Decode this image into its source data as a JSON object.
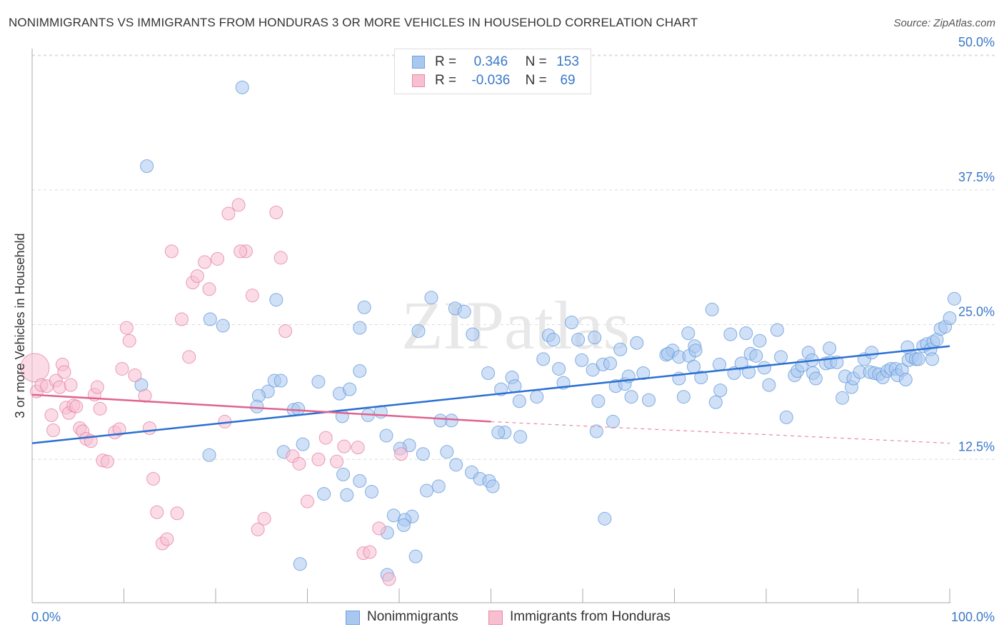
{
  "title": "NONIMMIGRANTS VS IMMIGRANTS FROM HONDURAS 3 OR MORE VEHICLES IN HOUSEHOLD CORRELATION CHART",
  "source": "Source: ZipAtlas.com",
  "watermark": "ZIPatlas",
  "legend": {
    "rows": [
      {
        "r_label": "R =",
        "r_value": "0.346",
        "n_label": "N =",
        "n_value": "153",
        "color": "#a9c8f0",
        "border": "#6f9fde"
      },
      {
        "r_label": "R =",
        "r_value": "-0.036",
        "n_label": "N =",
        "n_value": "69",
        "color": "#f8bfd1",
        "border": "#e88aa7"
      }
    ]
  },
  "bottom_legend": [
    {
      "label": "Nonimmigrants",
      "color": "#a9c8f0",
      "border": "#6f9fde"
    },
    {
      "label": "Immigrants from Honduras",
      "color": "#f8bfd1",
      "border": "#e88aa7"
    }
  ],
  "chart_data": {
    "type": "scatter",
    "ylabel": "3 or more Vehicles in Household",
    "xlabel": "",
    "x_tick_labels": [
      "0.0%",
      "100.0%"
    ],
    "y_tick_labels": [
      "12.5%",
      "25.0%",
      "37.5%",
      "50.0%"
    ],
    "y_ticks": [
      12.5,
      25.0,
      37.5,
      50.0
    ],
    "xlim": [
      0,
      100
    ],
    "ylim": [
      0,
      51
    ],
    "grid": true,
    "series": [
      {
        "name": "Nonimmigrants",
        "color": "#5f95d8",
        "fill": "#a9c8f0",
        "trend": {
          "x0": 0,
          "y0": 14.0,
          "x1": 100,
          "y1": 23.0
        },
        "points": [
          [
            22.9,
            47
          ],
          [
            12.5,
            39.7
          ],
          [
            26.6,
            27.3
          ],
          [
            11.9,
            19.4
          ],
          [
            19.4,
            25.5
          ],
          [
            20.8,
            24.9
          ],
          [
            25.7,
            18.8
          ],
          [
            26.4,
            19.8
          ],
          [
            27.1,
            19.8
          ],
          [
            24.7,
            18.4
          ],
          [
            31.2,
            19.7
          ],
          [
            28.5,
            17.1
          ],
          [
            33.5,
            18.6
          ],
          [
            34.6,
            19.0
          ],
          [
            35.7,
            20.7
          ],
          [
            36.2,
            26.6
          ],
          [
            35.7,
            24.7
          ],
          [
            42.1,
            24.4
          ],
          [
            43.5,
            27.5
          ],
          [
            46.1,
            26.5
          ],
          [
            47.1,
            26.2
          ],
          [
            48.0,
            24.1
          ],
          [
            49.7,
            20.5
          ],
          [
            51.1,
            19.0
          ],
          [
            52.3,
            20.1
          ],
          [
            53.1,
            17.9
          ],
          [
            52.6,
            19.3
          ],
          [
            55.7,
            21.8
          ],
          [
            55.0,
            18.3
          ],
          [
            56.3,
            24.0
          ],
          [
            56.8,
            23.6
          ],
          [
            57.4,
            20.9
          ],
          [
            57.9,
            19.6
          ],
          [
            58.8,
            25.2
          ],
          [
            59.5,
            23.6
          ],
          [
            59.9,
            21.7
          ],
          [
            61.1,
            20.8
          ],
          [
            61.3,
            23.8
          ],
          [
            61.7,
            17.9
          ],
          [
            62.2,
            21.3
          ],
          [
            63.0,
            21.4
          ],
          [
            63.6,
            19.3
          ],
          [
            64.1,
            22.7
          ],
          [
            64.6,
            19.5
          ],
          [
            65.0,
            20.2
          ],
          [
            65.3,
            18.3
          ],
          [
            65.9,
            23.3
          ],
          [
            66.6,
            20.5
          ],
          [
            67.2,
            18.0
          ],
          [
            69.1,
            22.2
          ],
          [
            69.8,
            22.6
          ],
          [
            69.3,
            22.3
          ],
          [
            70.5,
            22.0
          ],
          [
            70.5,
            20.0
          ],
          [
            71.6,
            22.1
          ],
          [
            72.2,
            23.0
          ],
          [
            72.3,
            22.6
          ],
          [
            71.5,
            24.2
          ],
          [
            72.9,
            20.1
          ],
          [
            72.1,
            21.1
          ],
          [
            74.9,
            21.3
          ],
          [
            74.1,
            26.4
          ],
          [
            75.0,
            18.9
          ],
          [
            74.5,
            17.8
          ],
          [
            76.1,
            24.1
          ],
          [
            76.5,
            20.5
          ],
          [
            77.3,
            21.4
          ],
          [
            78.1,
            20.6
          ],
          [
            77.8,
            24.2
          ],
          [
            78.3,
            22.3
          ],
          [
            78.9,
            22.1
          ],
          [
            79.3,
            23.5
          ],
          [
            79.8,
            21.0
          ],
          [
            80.3,
            19.4
          ],
          [
            81.2,
            24.5
          ],
          [
            81.6,
            22.0
          ],
          [
            82.2,
            16.4
          ],
          [
            83.1,
            20.3
          ],
          [
            83.4,
            20.7
          ],
          [
            83.9,
            21.2
          ],
          [
            84.6,
            22.4
          ],
          [
            85.0,
            21.7
          ],
          [
            85.1,
            20.5
          ],
          [
            85.4,
            20.0
          ],
          [
            86.5,
            21.4
          ],
          [
            87.0,
            21.5
          ],
          [
            86.9,
            22.8
          ],
          [
            87.7,
            21.5
          ],
          [
            88.3,
            18.2
          ],
          [
            88.6,
            20.2
          ],
          [
            89.3,
            19.2
          ],
          [
            89.5,
            20.0
          ],
          [
            90.2,
            20.6
          ],
          [
            90.7,
            21.8
          ],
          [
            91.3,
            20.6
          ],
          [
            91.5,
            22.4
          ],
          [
            91.8,
            20.5
          ],
          [
            92.3,
            20.4
          ],
          [
            92.7,
            20.1
          ],
          [
            93.2,
            20.7
          ],
          [
            93.6,
            20.9
          ],
          [
            94.1,
            20.9
          ],
          [
            94.3,
            20.3
          ],
          [
            94.8,
            20.8
          ],
          [
            95.2,
            19.9
          ],
          [
            95.5,
            21.7
          ],
          [
            95.9,
            22.0
          ],
          [
            96.3,
            21.8
          ],
          [
            96.6,
            21.8
          ],
          [
            97.1,
            23.0
          ],
          [
            97.5,
            23.2
          ],
          [
            97.9,
            22.7
          ],
          [
            98.2,
            23.4
          ],
          [
            98.6,
            23.6
          ],
          [
            99.0,
            24.6
          ],
          [
            99.5,
            24.8
          ],
          [
            100.0,
            25.6
          ],
          [
            100.5,
            27.4
          ],
          [
            98.1,
            21.8
          ],
          [
            95.4,
            22.9
          ],
          [
            71.0,
            18.3
          ],
          [
            63.3,
            16.0
          ],
          [
            61.5,
            15.1
          ],
          [
            53.2,
            14.6
          ],
          [
            51.5,
            15.0
          ],
          [
            50.8,
            15.0
          ],
          [
            45.7,
            16.1
          ],
          [
            44.5,
            16.1
          ],
          [
            38.0,
            16.9
          ],
          [
            36.6,
            16.6
          ],
          [
            33.8,
            16.5
          ],
          [
            29.0,
            17.2
          ],
          [
            24.5,
            17.4
          ],
          [
            38.6,
            14.7
          ],
          [
            41.1,
            13.8
          ],
          [
            40.1,
            13.5
          ],
          [
            42.6,
            13.0
          ],
          [
            45.2,
            13.2
          ],
          [
            29.5,
            13.9
          ],
          [
            27.4,
            13.2
          ],
          [
            19.3,
            12.9
          ],
          [
            33.9,
            11.1
          ],
          [
            35.7,
            10.5
          ],
          [
            44.3,
            10.0
          ],
          [
            46.2,
            12.0
          ],
          [
            47.9,
            11.3
          ],
          [
            48.8,
            10.7
          ],
          [
            49.8,
            10.5
          ],
          [
            50.2,
            10.0
          ],
          [
            37.0,
            9.5
          ],
          [
            43.0,
            9.6
          ],
          [
            31.8,
            9.3
          ],
          [
            34.3,
            9.2
          ],
          [
            62.4,
            7.0
          ],
          [
            39.4,
            7.3
          ],
          [
            41.4,
            7.2
          ],
          [
            40.6,
            6.9
          ],
          [
            40.5,
            6.4
          ],
          [
            38.7,
            5.7
          ],
          [
            41.8,
            3.5
          ],
          [
            38.7,
            1.8
          ],
          [
            29.2,
            2.8
          ]
        ]
      },
      {
        "name": "Immigrants from Honduras",
        "color": "#e37da0",
        "fill": "#f8bfd1",
        "trend": {
          "x0": 0,
          "y0": 18.5,
          "x1": 50,
          "y1": 16.0,
          "dash_x1": 100,
          "dash_y1": 14.0
        },
        "points": [
          [
            0.3,
            21.0
          ],
          [
            0.5,
            18.8
          ],
          [
            1.0,
            19.4
          ],
          [
            1.6,
            19.3
          ],
          [
            2.1,
            16.6
          ],
          [
            2.3,
            15.2
          ],
          [
            2.6,
            19.8
          ],
          [
            3.0,
            19.2
          ],
          [
            3.3,
            21.3
          ],
          [
            3.5,
            20.6
          ],
          [
            3.7,
            17.3
          ],
          [
            4.0,
            16.8
          ],
          [
            4.2,
            19.4
          ],
          [
            4.5,
            17.5
          ],
          [
            4.8,
            17.4
          ],
          [
            5.2,
            15.4
          ],
          [
            5.5,
            15.1
          ],
          [
            5.9,
            14.4
          ],
          [
            6.4,
            14.2
          ],
          [
            6.8,
            18.5
          ],
          [
            7.1,
            19.2
          ],
          [
            7.4,
            17.2
          ],
          [
            7.7,
            12.4
          ],
          [
            8.2,
            12.3
          ],
          [
            9.0,
            15.0
          ],
          [
            9.5,
            15.3
          ],
          [
            9.8,
            20.9
          ],
          [
            10.3,
            24.7
          ],
          [
            10.6,
            23.5
          ],
          [
            11.2,
            20.3
          ],
          [
            12.3,
            18.4
          ],
          [
            12.8,
            15.4
          ],
          [
            13.2,
            10.7
          ],
          [
            13.6,
            7.6
          ],
          [
            14.2,
            4.7
          ],
          [
            14.7,
            5.1
          ],
          [
            15.2,
            31.8
          ],
          [
            15.8,
            7.5
          ],
          [
            16.3,
            25.5
          ],
          [
            17.1,
            22.0
          ],
          [
            17.5,
            28.9
          ],
          [
            18.0,
            29.5
          ],
          [
            18.8,
            30.8
          ],
          [
            19.3,
            28.3
          ],
          [
            20.2,
            31.1
          ],
          [
            21.4,
            35.3
          ],
          [
            22.5,
            36.1
          ],
          [
            23.3,
            31.8
          ],
          [
            24.0,
            27.7
          ],
          [
            24.6,
            6.0
          ],
          [
            25.3,
            7.0
          ],
          [
            26.6,
            35.4
          ],
          [
            27.1,
            31.2
          ],
          [
            27.6,
            24.4
          ],
          [
            28.4,
            12.8
          ],
          [
            29.1,
            12.1
          ],
          [
            30.0,
            8.6
          ],
          [
            31.2,
            12.5
          ],
          [
            32.0,
            14.5
          ],
          [
            33.2,
            12.3
          ],
          [
            34.0,
            13.7
          ],
          [
            35.5,
            13.6
          ],
          [
            36.1,
            3.8
          ],
          [
            36.8,
            3.9
          ],
          [
            37.8,
            6.1
          ],
          [
            38.9,
            1.4
          ],
          [
            40.2,
            13.0
          ],
          [
            22.7,
            31.8
          ],
          [
            21.0,
            16.0
          ]
        ]
      }
    ]
  }
}
